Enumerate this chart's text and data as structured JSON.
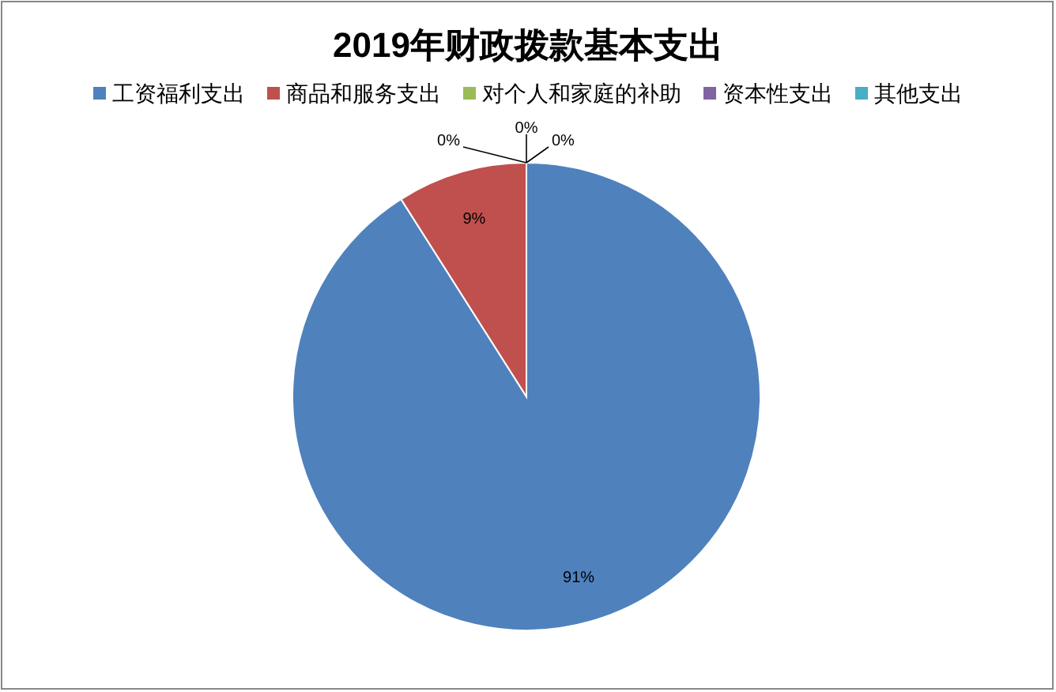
{
  "chart_data": {
    "type": "pie",
    "title": "2019年财政拨款基本支出",
    "categories": [
      "工资福利支出",
      "商品和服务支出",
      "对个人和家庭的补助",
      "资本性支出",
      "其他支出"
    ],
    "values": [
      91,
      9,
      0,
      0,
      0
    ],
    "colors": [
      "#4f81bd",
      "#c0504d",
      "#9bbb59",
      "#8064a2",
      "#4bacc6"
    ],
    "value_labels": [
      "91%",
      "9%",
      "0%",
      "0%",
      "0%"
    ],
    "legend": "top"
  }
}
